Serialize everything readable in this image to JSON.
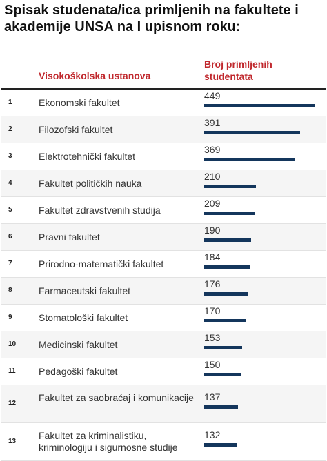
{
  "title": "Spisak studenata/ica primljenih na fakultete i akademije UNSA na I upisnom roku:",
  "chart_data": {
    "type": "bar",
    "orientation": "horizontal",
    "bar_color": "#14365c",
    "header_color": "#c0282d",
    "columns": [
      "Visokoškolska ustanova",
      "Broj primljenih studentata"
    ],
    "rows": [
      {
        "rank": "1",
        "name": "Ekonomski fakultet",
        "value": 449
      },
      {
        "rank": "2",
        "name": "Filozofski fakultet",
        "value": 391
      },
      {
        "rank": "3",
        "name": "Elektrotehnički fakultet",
        "value": 369
      },
      {
        "rank": "4",
        "name": "Fakultet političkih nauka",
        "value": 210
      },
      {
        "rank": "5",
        "name": "Fakultet zdravstvenih studija",
        "value": 209
      },
      {
        "rank": "6",
        "name": "Pravni fakultet",
        "value": 190
      },
      {
        "rank": "7",
        "name": "Prirodno-matematički fakultet",
        "value": 184
      },
      {
        "rank": "8",
        "name": "Farmaceutski fakultet",
        "value": 176
      },
      {
        "rank": "9",
        "name": "Stomatološki fakultet",
        "value": 170
      },
      {
        "rank": "10",
        "name": "Medicinski fakultet",
        "value": 153
      },
      {
        "rank": "11",
        "name": "Pedagoški fakultet",
        "value": 150
      },
      {
        "rank": "12",
        "name": "Fakultet za saobraćaj i komunikacije",
        "value": 137
      },
      {
        "rank": "13",
        "name": "Fakultet za kriminalistiku, kriminologiju i sigurnosne studije",
        "value": 132
      }
    ]
  }
}
